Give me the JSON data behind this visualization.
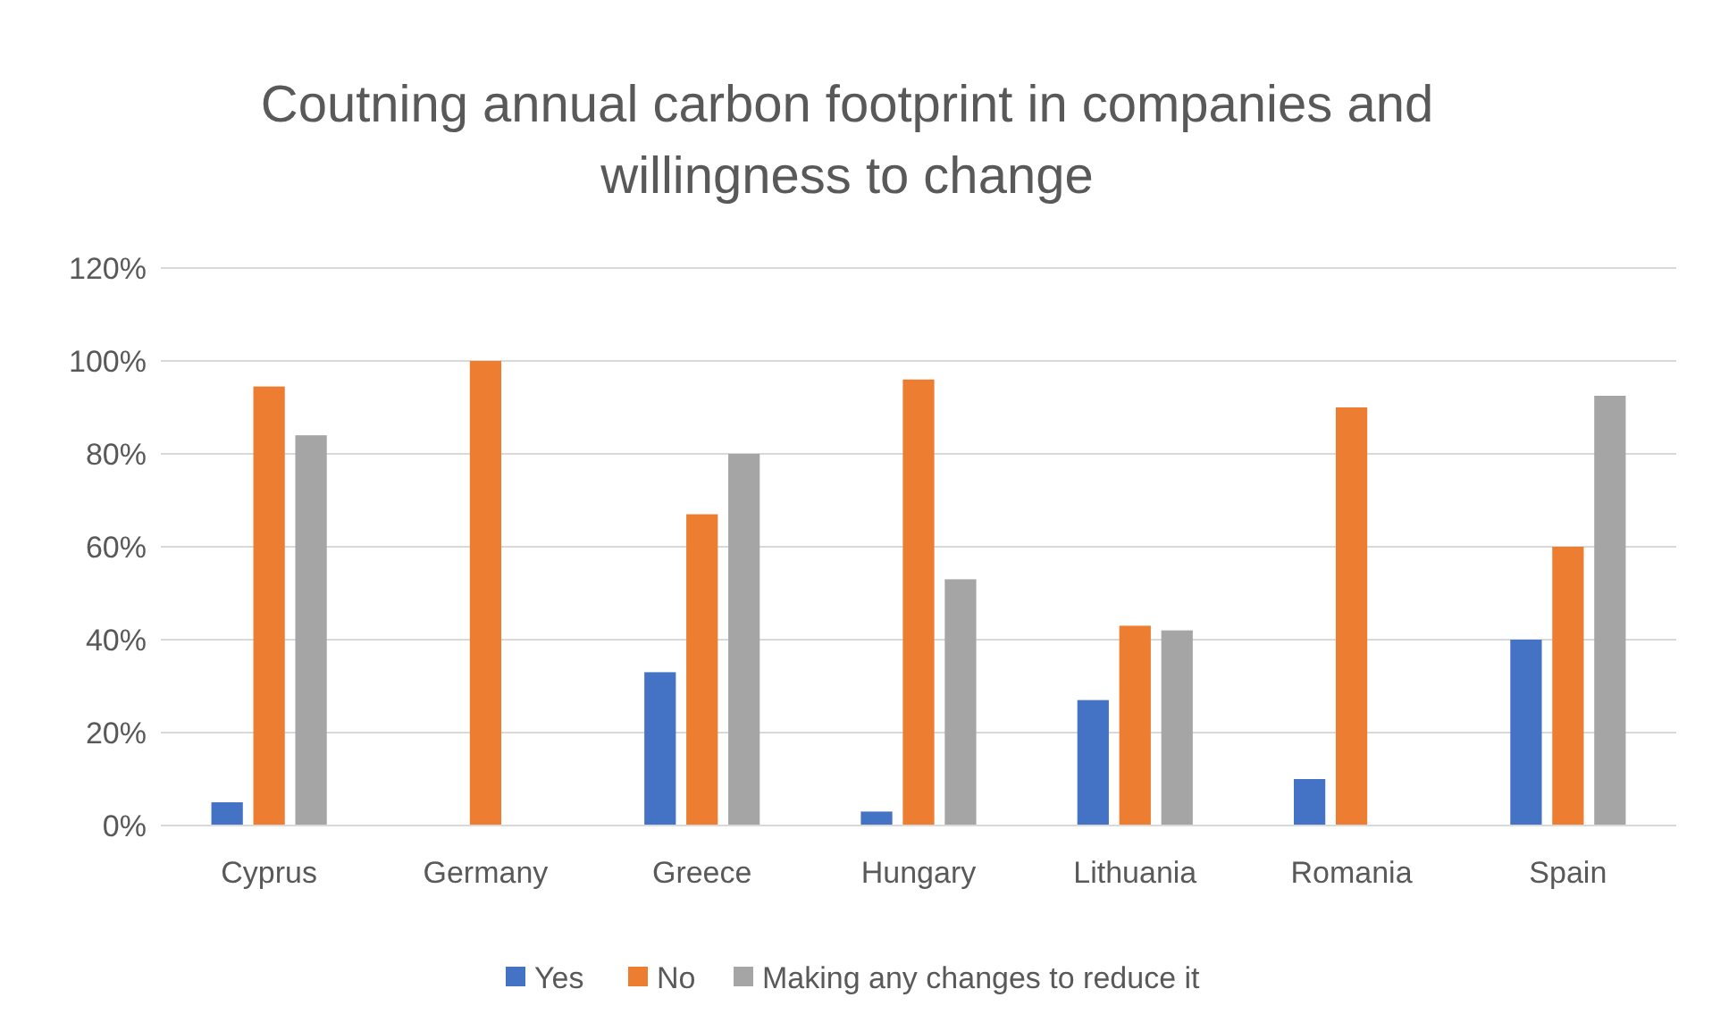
{
  "chart_data": {
    "type": "bar",
    "title": "Coutning annual carbon footprint in companies and willingness to change",
    "categories": [
      "Cyprus",
      "Germany",
      "Greece",
      "Hungary",
      "Lithuania",
      "Romania",
      "Spain"
    ],
    "series": [
      {
        "name": "Yes",
        "color": "#4472c4",
        "values": [
          5,
          0,
          33,
          3,
          27,
          10,
          40
        ]
      },
      {
        "name": "No",
        "color": "#ed7d31",
        "values": [
          94.5,
          100,
          67,
          96,
          43,
          90,
          60
        ]
      },
      {
        "name": "Making any changes to reduce it",
        "color": "#a5a5a5",
        "values": [
          84,
          0,
          80,
          53,
          42,
          0,
          92.5
        ]
      }
    ],
    "ylim": [
      0,
      120
    ],
    "yticks": [
      {
        "value": 0,
        "label": "0%"
      },
      {
        "value": 20,
        "label": "20%"
      },
      {
        "value": 40,
        "label": "40%"
      },
      {
        "value": 60,
        "label": "60%"
      },
      {
        "value": 80,
        "label": "80%"
      },
      {
        "value": 100,
        "label": "100%"
      },
      {
        "value": 120,
        "label": "120%"
      }
    ],
    "grid": "y",
    "legend": "bottom"
  }
}
